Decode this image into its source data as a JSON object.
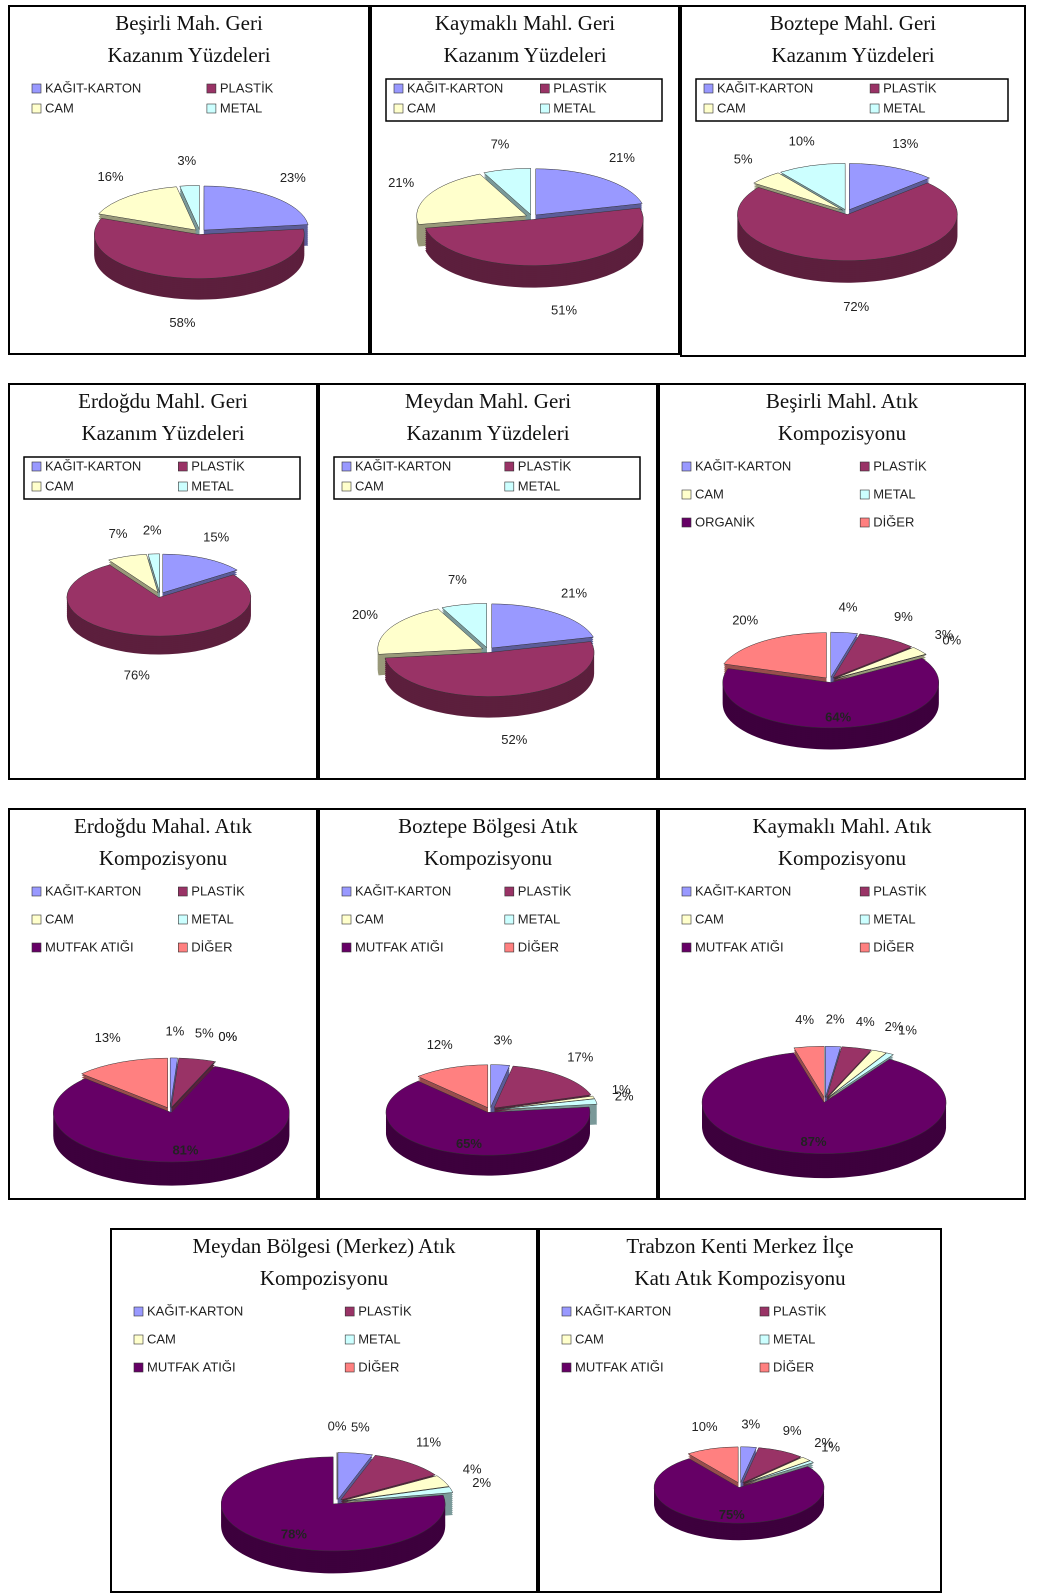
{
  "chart_data": [
    {
      "type": "pie",
      "title": [
        "Beşirli Mah. Geri",
        "Kazanım Yüzdeleri"
      ],
      "categories": [
        "KAĞIT-KARTON",
        "PLASTİK",
        "CAM",
        "METAL"
      ],
      "values": [
        23,
        58,
        16,
        3
      ],
      "value_labels": [
        "23%",
        "58%",
        "16%",
        "3%"
      ],
      "colors": [
        "#9999ff",
        "#993366",
        "#ffffcc",
        "#ccffff"
      ],
      "legend_frame": false
    },
    {
      "type": "pie",
      "title": [
        "Kaymaklı Mahl. Geri",
        "Kazanım Yüzdeleri"
      ],
      "categories": [
        "KAĞIT-KARTON",
        "PLASTİK",
        "CAM",
        "METAL"
      ],
      "values": [
        21,
        51,
        21,
        7
      ],
      "value_labels": [
        "21%",
        "51%",
        "21%",
        "7%"
      ],
      "colors": [
        "#9999ff",
        "#993366",
        "#ffffcc",
        "#ccffff"
      ],
      "legend_frame": true
    },
    {
      "type": "pie",
      "title": [
        "Boztepe Mahl. Geri",
        "Kazanım Yüzdeleri"
      ],
      "categories": [
        "KAĞIT-KARTON",
        "PLASTİK",
        "CAM",
        "METAL"
      ],
      "values": [
        13,
        72,
        5,
        10
      ],
      "value_labels": [
        "13%",
        "72%",
        "5%",
        "10%"
      ],
      "colors": [
        "#9999ff",
        "#993366",
        "#ffffcc",
        "#ccffff"
      ],
      "legend_frame": true
    },
    {
      "type": "pie",
      "title": [
        "Erdoğdu Mahl.  Geri",
        "Kazanım Yüzdeleri"
      ],
      "categories": [
        "KAĞIT-KARTON",
        "PLASTİK",
        "CAM",
        "METAL"
      ],
      "values": [
        15,
        76,
        7,
        2
      ],
      "value_labels": [
        "15%",
        "76%",
        "7%",
        "2%"
      ],
      "colors": [
        "#9999ff",
        "#993366",
        "#ffffcc",
        "#ccffff"
      ],
      "legend_frame": true
    },
    {
      "type": "pie",
      "title": [
        "Meydan Mahl. Geri",
        "Kazanım Yüzdeleri"
      ],
      "categories": [
        "KAĞIT-KARTON",
        "PLASTİK",
        "CAM",
        "METAL"
      ],
      "values": [
        21,
        52,
        20,
        7
      ],
      "value_labels": [
        "21%",
        "52%",
        "20%",
        "7%"
      ],
      "colors": [
        "#9999ff",
        "#993366",
        "#ffffcc",
        "#ccffff"
      ],
      "legend_frame": true
    },
    {
      "type": "pie",
      "title": [
        "Beşirli Mahl.  Atık",
        "Kompozisyonu"
      ],
      "categories": [
        "KAĞIT-KARTON",
        "PLASTİK",
        "CAM",
        "METAL",
        "ORGANİK",
        "DİĞER"
      ],
      "values": [
        4,
        9,
        3,
        0,
        64,
        20
      ],
      "value_labels": [
        "4%",
        "9%",
        "3%",
        "0%",
        "64%",
        "20%"
      ],
      "colors": [
        "#9999ff",
        "#993366",
        "#ffffcc",
        "#ccffff",
        "#660066",
        "#ff8080"
      ],
      "legend_frame": false
    },
    {
      "type": "pie",
      "title": [
        "Erdoğdu Mahal. Atık",
        "Kompozisyonu"
      ],
      "categories": [
        "KAĞIT-KARTON",
        "PLASTİK",
        "CAM",
        "METAL",
        "MUTFAK ATIĞI",
        "DİĞER"
      ],
      "values": [
        1,
        5,
        0,
        0,
        81,
        13
      ],
      "value_labels": [
        "1%",
        "5%",
        "0%",
        "0%",
        "81%",
        "13%"
      ],
      "colors": [
        "#9999ff",
        "#993366",
        "#ffffcc",
        "#ccffff",
        "#660066",
        "#ff8080"
      ],
      "legend_frame": false
    },
    {
      "type": "pie",
      "title": [
        "Boztepe Bölgesi  Atık",
        "Kompozisyonu"
      ],
      "categories": [
        "KAĞIT-KARTON",
        "PLASTİK",
        "CAM",
        "METAL",
        "MUTFAK ATIĞI",
        "DİĞER"
      ],
      "values": [
        3,
        17,
        1,
        2,
        65,
        12
      ],
      "value_labels": [
        "3%",
        "17%",
        "1%",
        "2%",
        "65%",
        "12%"
      ],
      "colors": [
        "#9999ff",
        "#993366",
        "#ffffcc",
        "#ccffff",
        "#660066",
        "#ff8080"
      ],
      "legend_frame": false
    },
    {
      "type": "pie",
      "title": [
        "Kaymaklı Mahl. Atık",
        "Kompozisyonu"
      ],
      "categories": [
        "KAĞIT-KARTON",
        "PLASTİK",
        "CAM",
        "METAL",
        "MUTFAK ATIĞI",
        "DİĞER"
      ],
      "values": [
        2,
        4,
        2,
        1,
        87,
        4
      ],
      "value_labels": [
        "2%",
        "4%",
        "2%",
        "1%",
        "87%",
        "4%"
      ],
      "colors": [
        "#9999ff",
        "#993366",
        "#ffffcc",
        "#ccffff",
        "#660066",
        "#ff8080"
      ],
      "legend_frame": false
    },
    {
      "type": "pie",
      "title": [
        "Meydan Bölgesi (Merkez)  Atık",
        "Kompozisyonu"
      ],
      "categories": [
        "KAĞIT-KARTON",
        "PLASTİK",
        "CAM",
        "METAL",
        "MUTFAK ATIĞI",
        "DİĞER"
      ],
      "values": [
        5,
        11,
        4,
        2,
        78,
        0
      ],
      "value_labels": [
        "5%",
        "11%",
        "4%",
        "2%",
        "78%",
        "0%"
      ],
      "colors": [
        "#9999ff",
        "#993366",
        "#ffffcc",
        "#ccffff",
        "#660066",
        "#ff8080"
      ],
      "legend_frame": false
    },
    {
      "type": "pie",
      "title": [
        "Trabzon Kenti Merkez İlçe",
        "Katı Atık Kompozisyonu"
      ],
      "categories": [
        "KAĞIT-KARTON",
        "PLASTİK",
        "CAM",
        "METAL",
        "MUTFAK ATIĞI",
        "DİĞER"
      ],
      "values": [
        3,
        9,
        2,
        1,
        75,
        10
      ],
      "value_labels": [
        "3%",
        "9%",
        "2%",
        "1%",
        "75%",
        "10%"
      ],
      "colors": [
        "#9999ff",
        "#993366",
        "#ffffcc",
        "#ccffff",
        "#660066",
        "#ff8080"
      ],
      "legend_frame": false
    }
  ]
}
